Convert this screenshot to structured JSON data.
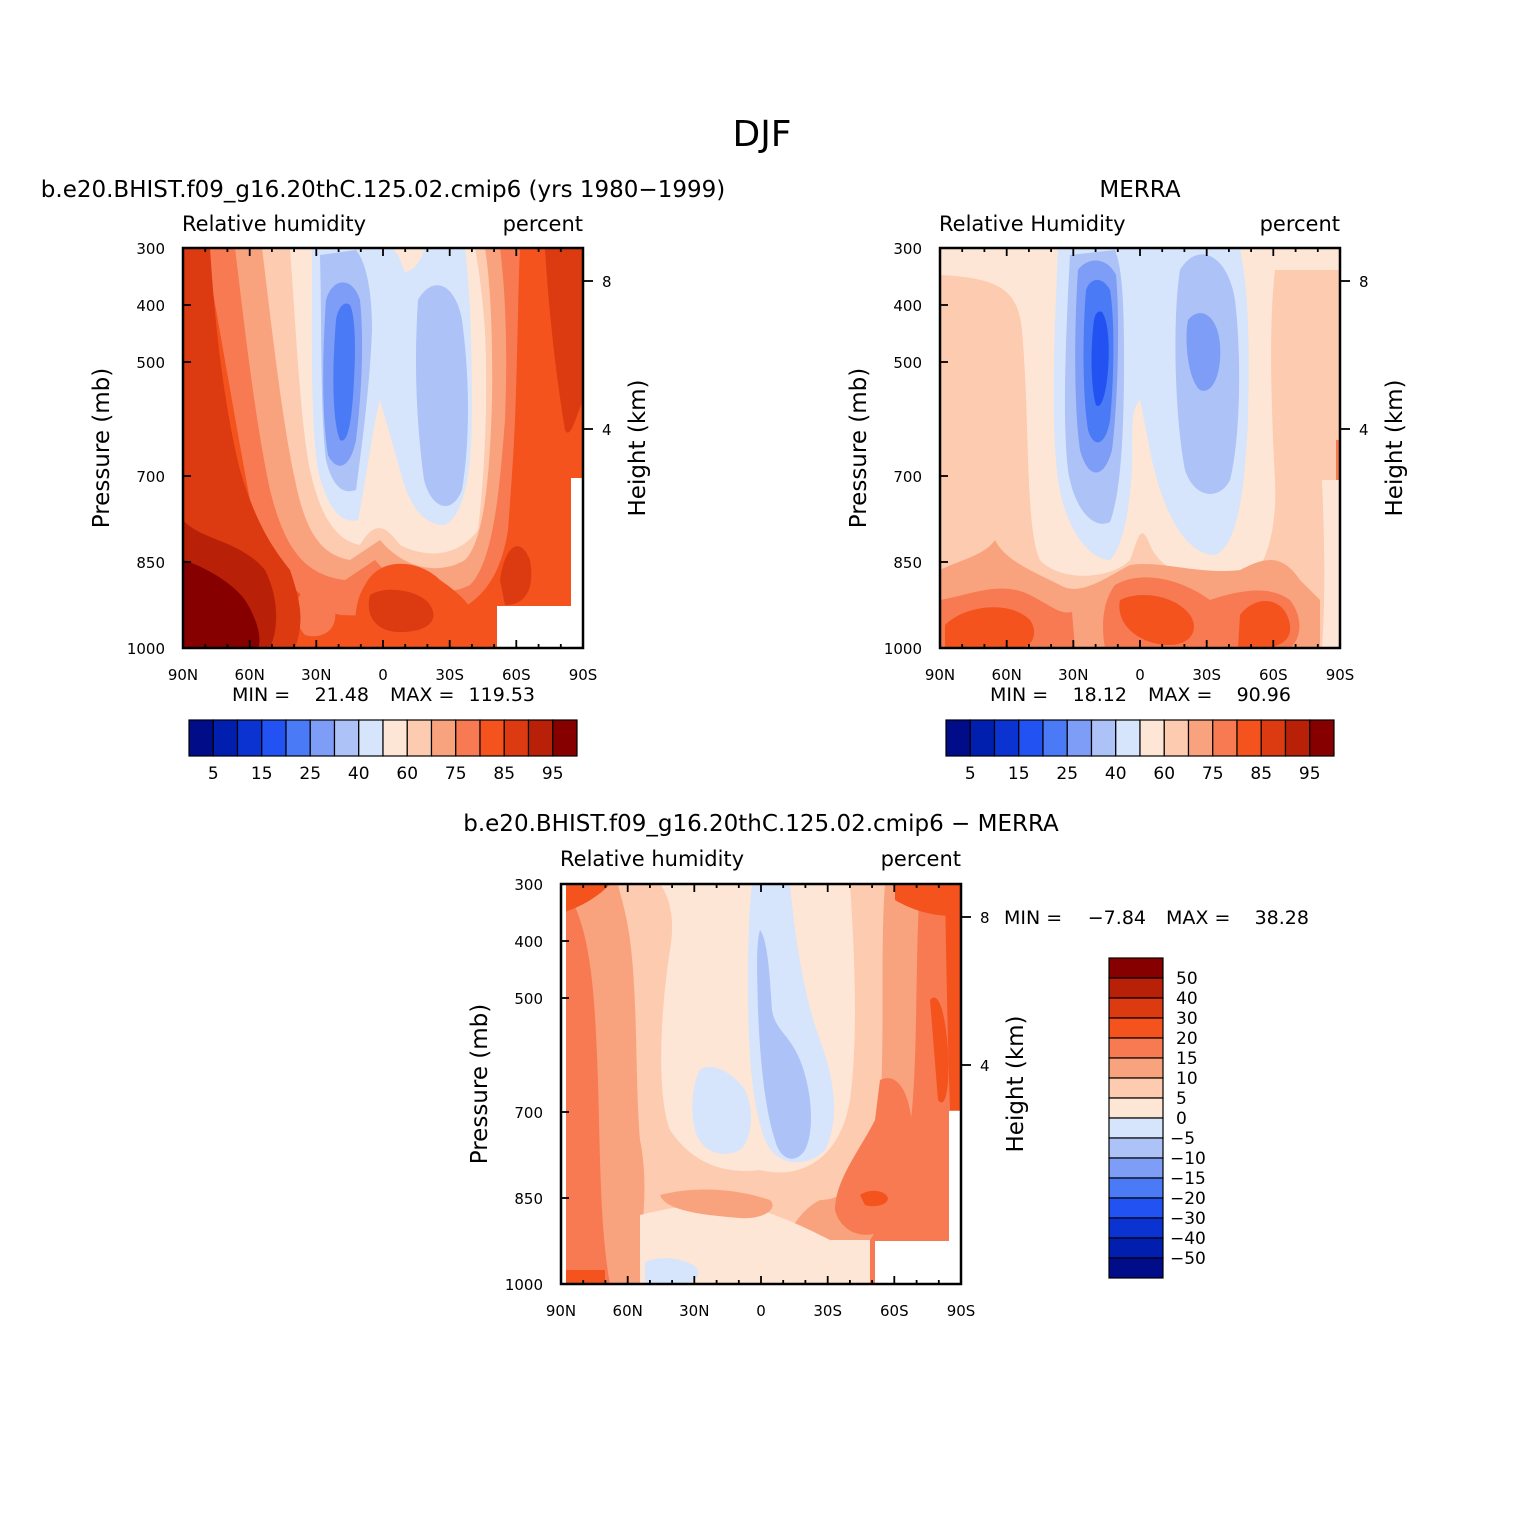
{
  "figure": {
    "title": "DJF"
  },
  "colors": {
    "rh_palette": [
      "#000c88",
      "#001fae",
      "#0b33d2",
      "#2253f2",
      "#4a7af5",
      "#7e9df6",
      "#adc2f6",
      "#d6e5fb",
      "#fde6d6",
      "#fdcbb0",
      "#f9a37e",
      "#f77a52",
      "#f4531e",
      "#dc3a10",
      "#b82108",
      "#860000"
    ],
    "diff_palette": [
      "#000c88",
      "#001fae",
      "#0b33d2",
      "#2253f2",
      "#4a7af5",
      "#7e9df6",
      "#adc2f6",
      "#d6e5fb",
      "#fde6d6",
      "#fdcbb0",
      "#f9a37e",
      "#f77a52",
      "#f4531e",
      "#dc3a10",
      "#b82108",
      "#860000"
    ]
  },
  "chart_data": [
    {
      "type": "heatmap",
      "title": "b.e20.BHIST.f09_g16.20thC.125.02.cmip6 (yrs 1980−1999)",
      "subtitle_left": "Relative humidity",
      "subtitle_right": "percent",
      "ylabel": "Pressure (mb)",
      "ylabel_right": "Height (km)",
      "x_ticks": [
        "90N",
        "60N",
        "30N",
        "0",
        "30S",
        "60S",
        "90S"
      ],
      "y_ticks": [
        "300",
        "400",
        "500",
        "700",
        "850",
        "1000"
      ],
      "y_right_ticks": [
        "8",
        "4"
      ],
      "stats": {
        "min_label": "MIN =",
        "min": "21.48",
        "max_label": "MAX =",
        "max": "119.53"
      },
      "colorbar": {
        "orientation": "horizontal",
        "labels": [
          "5",
          "15",
          "25",
          "40",
          "60",
          "75",
          "85",
          "95"
        ]
      }
    },
    {
      "type": "heatmap",
      "title": "MERRA",
      "subtitle_left": "Relative Humidity",
      "subtitle_right": "percent",
      "ylabel": "Pressure (mb)",
      "ylabel_right": "Height (km)",
      "x_ticks": [
        "90N",
        "60N",
        "30N",
        "0",
        "30S",
        "60S",
        "90S"
      ],
      "y_ticks": [
        "300",
        "400",
        "500",
        "700",
        "850",
        "1000"
      ],
      "y_right_ticks": [
        "8",
        "4"
      ],
      "stats": {
        "min_label": "MIN =",
        "min": "18.12",
        "max_label": "MAX =",
        "max": "90.96"
      },
      "colorbar": {
        "orientation": "horizontal",
        "labels": [
          "5",
          "15",
          "25",
          "40",
          "60",
          "75",
          "85",
          "95"
        ]
      }
    },
    {
      "type": "heatmap",
      "title": "b.e20.BHIST.f09_g16.20thC.125.02.cmip6 − MERRA",
      "subtitle_left": "Relative humidity",
      "subtitle_right": "percent",
      "ylabel": "Pressure (mb)",
      "ylabel_right": "Height (km)",
      "x_ticks": [
        "90N",
        "60N",
        "30N",
        "0",
        "30S",
        "60S",
        "90S"
      ],
      "y_ticks": [
        "300",
        "400",
        "500",
        "700",
        "850",
        "1000"
      ],
      "y_right_ticks": [
        "8",
        "4"
      ],
      "stats": {
        "min_label": "MIN =",
        "min": "−7.84",
        "max_label": "MAX =",
        "max": "38.28"
      },
      "colorbar": {
        "orientation": "vertical",
        "labels": [
          "50",
          "40",
          "30",
          "20",
          "15",
          "10",
          "5",
          "0",
          "−5",
          "−10",
          "−15",
          "−20",
          "−30",
          "−40",
          "−50"
        ]
      }
    }
  ]
}
